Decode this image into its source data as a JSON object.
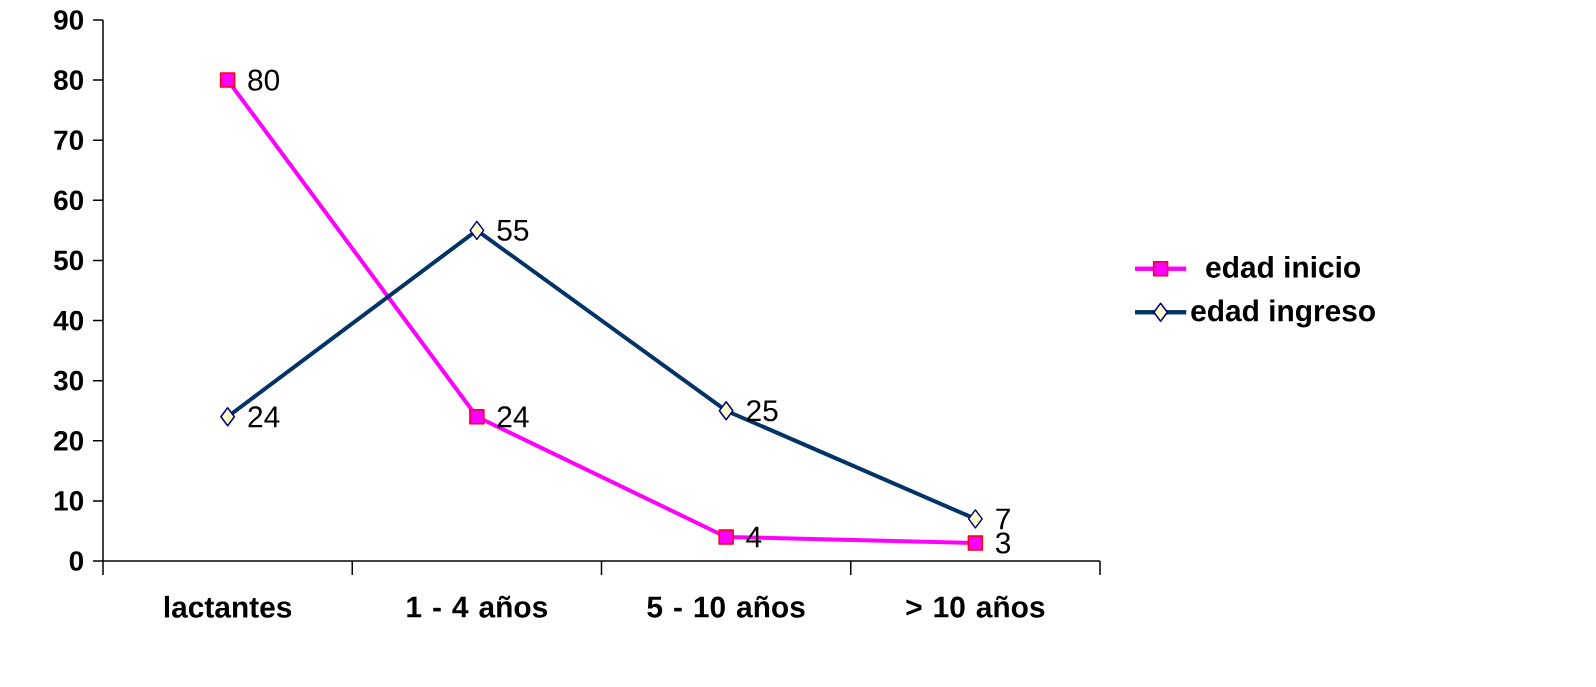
{
  "chart_data": {
    "type": "line",
    "categories": [
      "lactantes",
      "1 - 4 años",
      "5 - 10 años",
      "> 10 años"
    ],
    "series": [
      {
        "name": "edad inicio",
        "color": "#ff00ff",
        "values": [
          80,
          24,
          4,
          3
        ],
        "marker": "square"
      },
      {
        "name": "edad ingreso",
        "color": "#003366",
        "values": [
          24,
          55,
          25,
          7
        ],
        "marker": "diamond"
      }
    ],
    "ylim": [
      0,
      90
    ],
    "yticks": [
      0,
      10,
      20,
      30,
      40,
      50,
      60,
      70,
      80,
      90
    ],
    "grid": false,
    "legend": "right",
    "data_labels": true,
    "line_style": "solid"
  }
}
